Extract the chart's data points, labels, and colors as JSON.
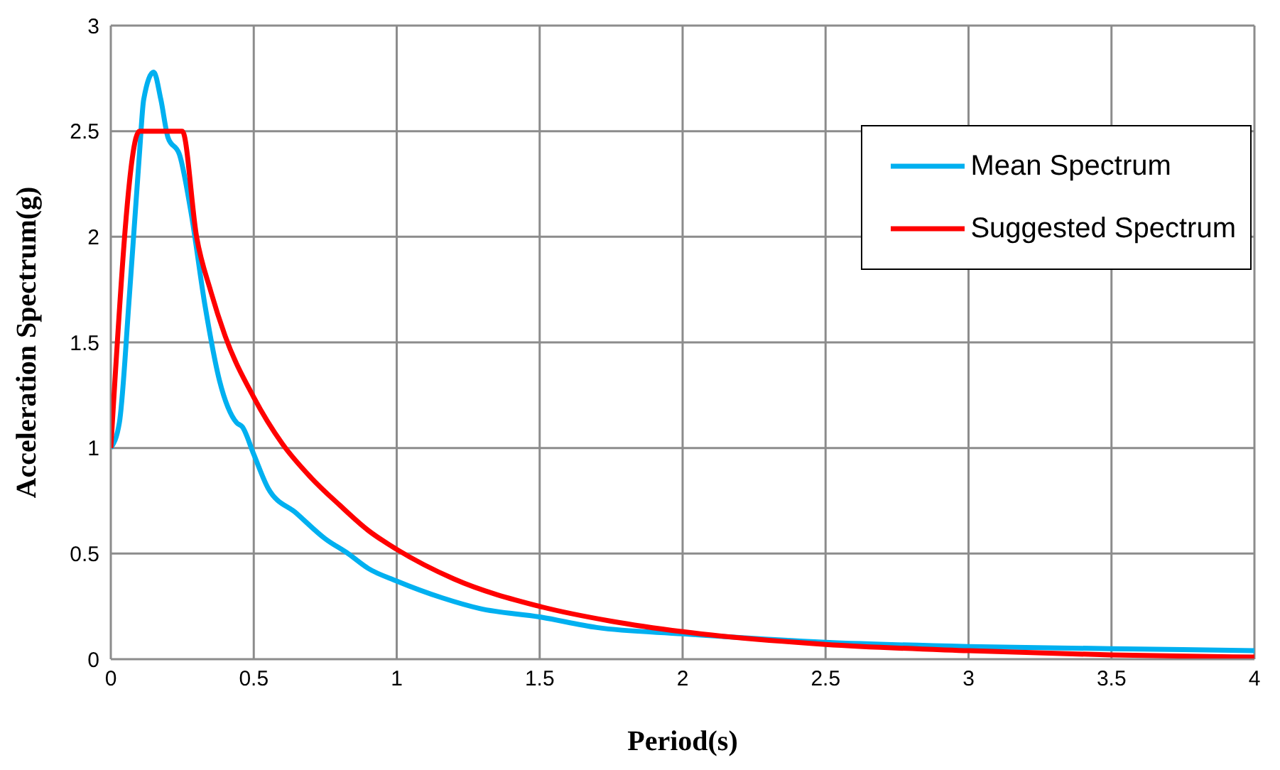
{
  "chart_data": {
    "type": "line",
    "xlabel": "Period(s)",
    "ylabel": "Acceleration Spectrum(g)",
    "xlim": [
      0,
      4
    ],
    "xticks": [
      0,
      0.5,
      1,
      1.5,
      2,
      2.5,
      3,
      3.5,
      4
    ],
    "ylim": [
      0,
      3
    ],
    "yticks": [
      0,
      0.5,
      1,
      1.5,
      2,
      2.5,
      3
    ],
    "grid": true,
    "legend": "top right",
    "marker": "none",
    "line_style": "solid",
    "series": [
      {
        "name": "Mean Spectrum",
        "color": "#00b0f0",
        "x": [
          0,
          0.03,
          0.065,
          0.1,
          0.115,
          0.15,
          0.175,
          0.2,
          0.24,
          0.28,
          0.33,
          0.38,
          0.44,
          0.46,
          0.5,
          0.55,
          0.65,
          0.75,
          0.83,
          0.9,
          1,
          1.16,
          1.29,
          1.5,
          1.7,
          2,
          2.5,
          3,
          3.5,
          4
        ],
        "values": [
          1,
          1.12,
          1.72,
          2.39,
          2.65,
          2.78,
          2.65,
          2.47,
          2.39,
          2.12,
          1.67,
          1.32,
          1.12,
          1.1,
          0.97,
          0.81,
          0.69,
          0.57,
          0.5,
          0.43,
          0.37,
          0.29,
          0.24,
          0.2,
          0.15,
          0.12,
          0.08,
          0.06,
          0.05,
          0.04
        ]
      },
      {
        "name": "Suggested Spectrum",
        "color": "#ff0000",
        "x": [
          0,
          0.1,
          0.25,
          0.3,
          0.35,
          0.4,
          0.5,
          0.6,
          0.7,
          0.8,
          0.9,
          1,
          1.2,
          1.5,
          1.75,
          2,
          2.5,
          3,
          3.5,
          4
        ],
        "values": [
          1,
          2.5,
          2.5,
          2,
          1.74,
          1.53,
          1.24,
          1.02,
          0.86,
          0.73,
          0.61,
          0.52,
          0.38,
          0.25,
          0.18,
          0.13,
          0.07,
          0.04,
          0.02,
          0.01
        ]
      }
    ]
  }
}
